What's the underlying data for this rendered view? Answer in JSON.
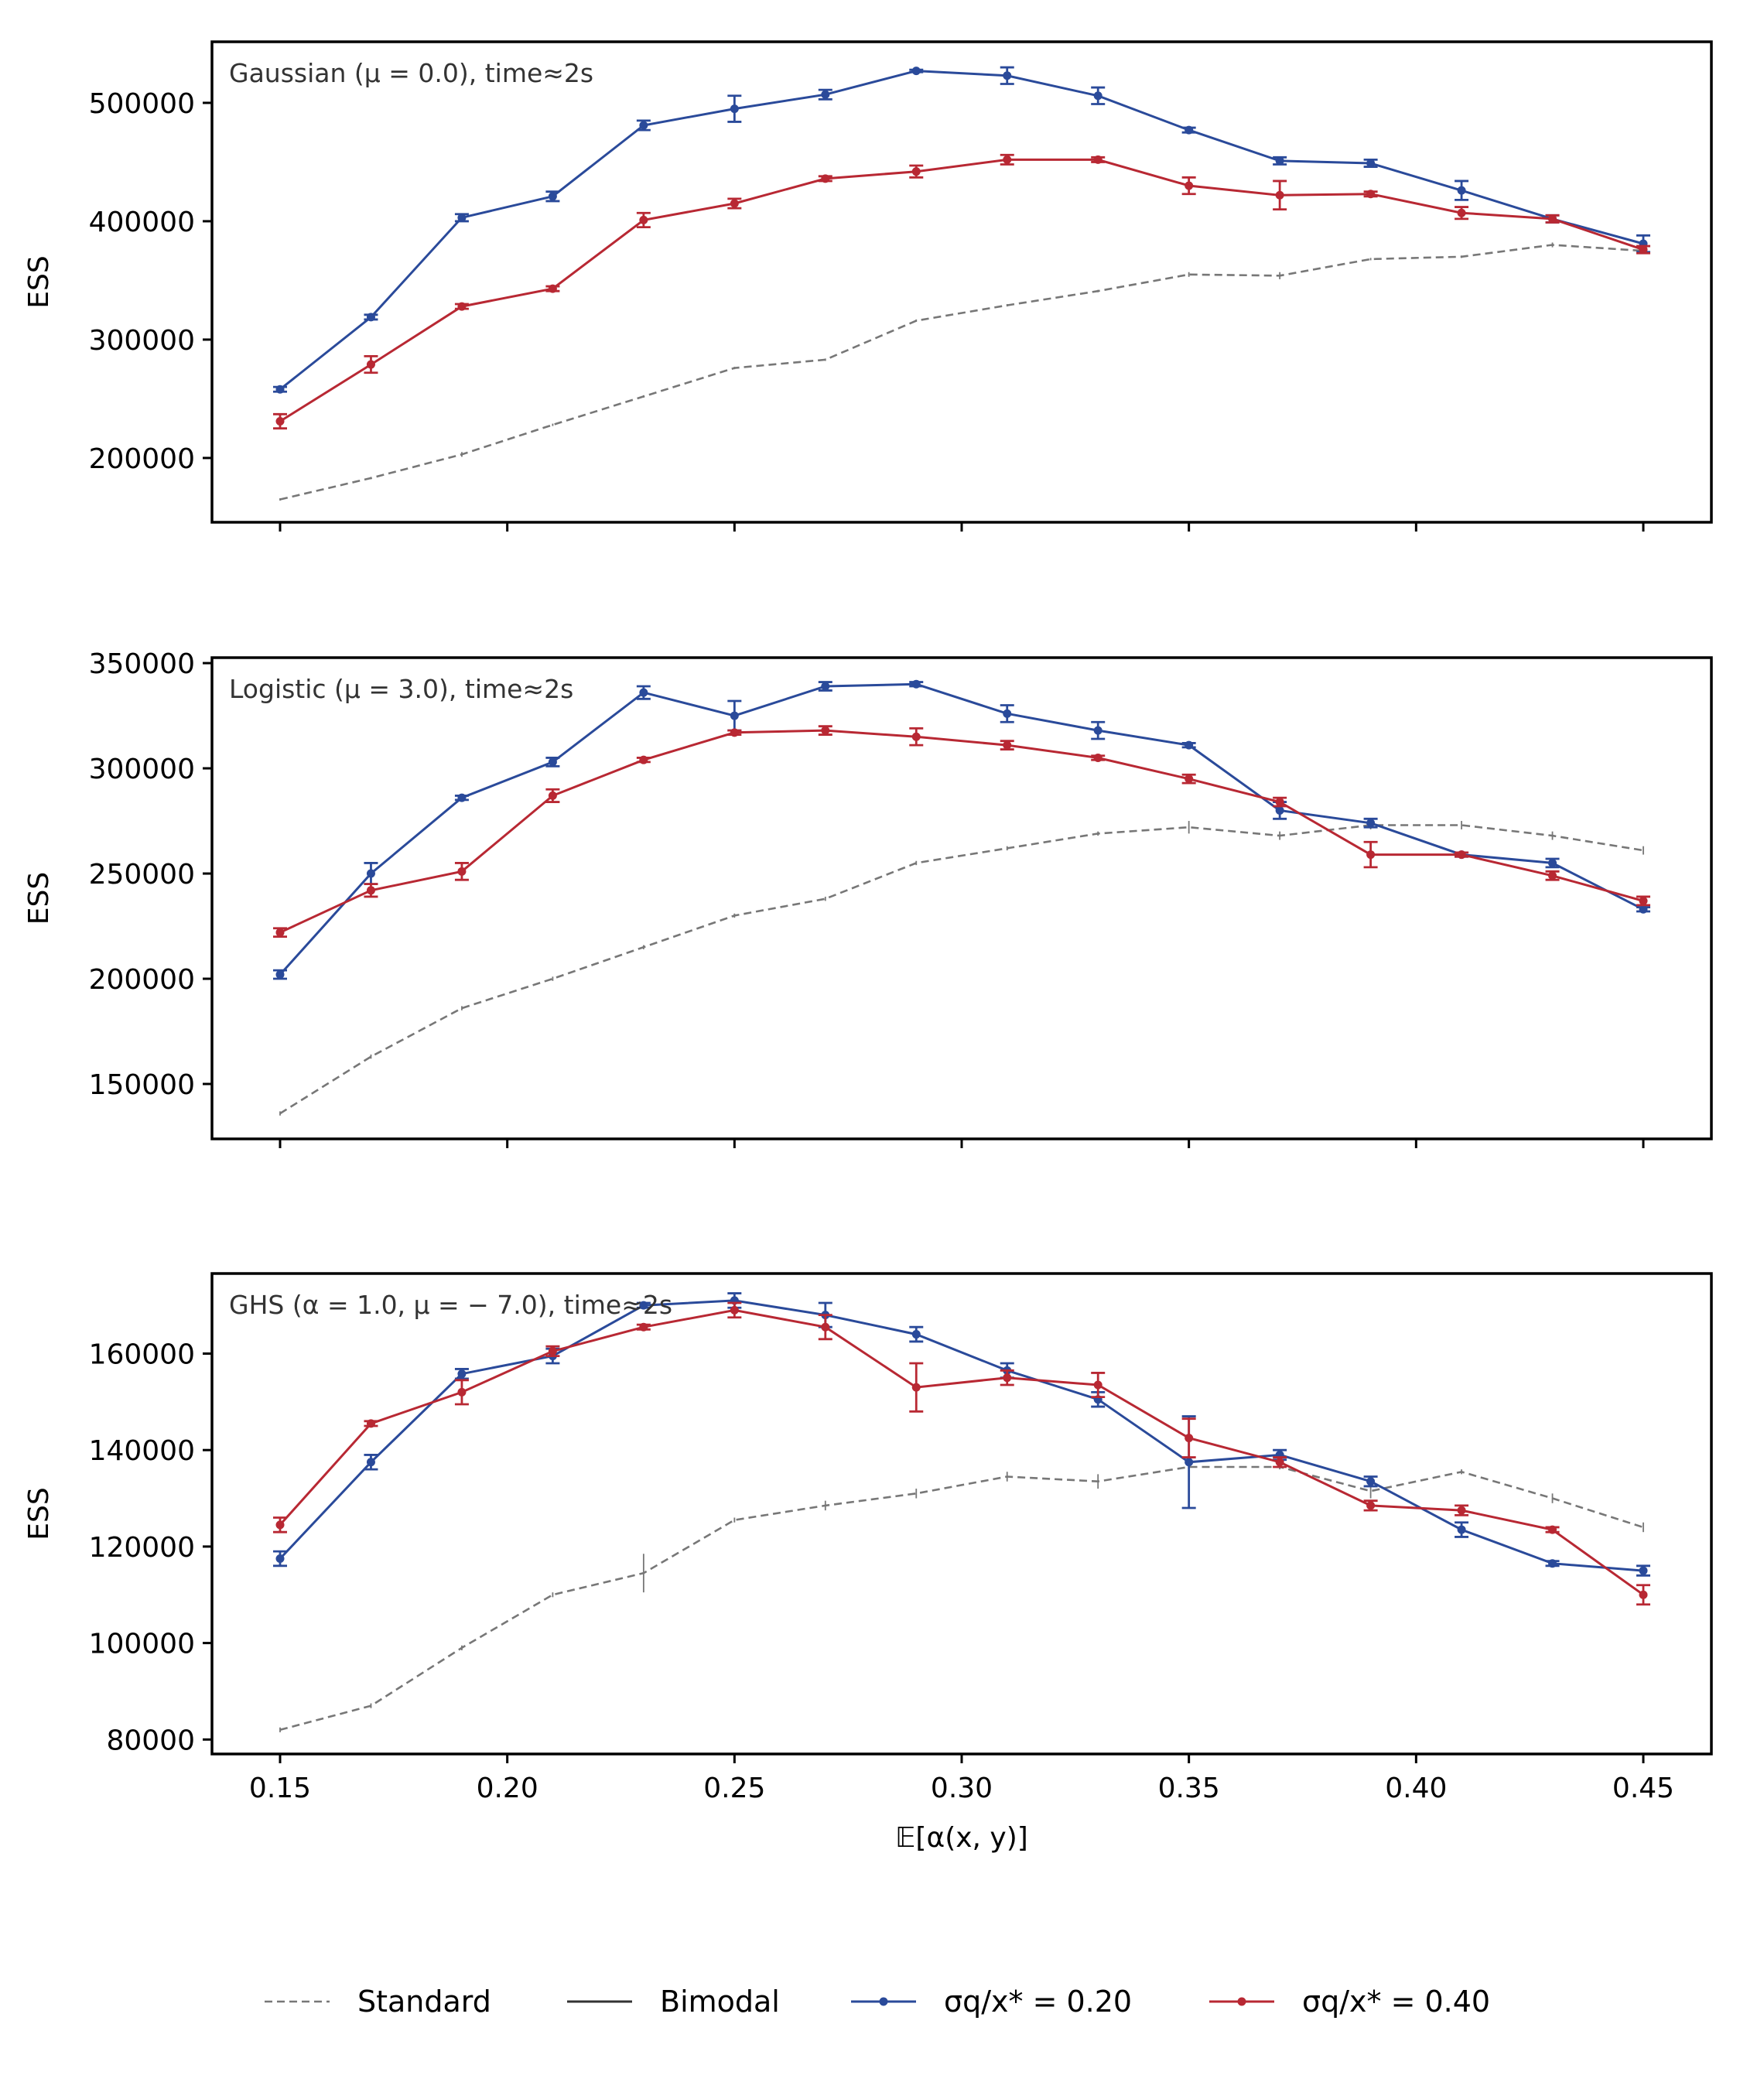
{
  "chart_data": [
    {
      "type": "line",
      "panel": "top",
      "annotation": "Gaussian (μ = 0.0),  time≈2s",
      "ylabel": "ESS",
      "xlabel": "",
      "ylim": [
        145700,
        551600
      ],
      "yticks": [
        200000,
        300000,
        400000,
        500000
      ],
      "ytick_labels": [
        "200000",
        "300000",
        "400000",
        "500000"
      ],
      "x": [
        0.15,
        0.17,
        0.19,
        0.21,
        0.23,
        0.25,
        0.27,
        0.29,
        0.31,
        0.33,
        0.35,
        0.37,
        0.39,
        0.41,
        0.43,
        0.45
      ],
      "series": [
        {
          "name": "Standard",
          "style": "dashed",
          "color": "#777777",
          "values": [
            165000,
            183000,
            203000,
            228000,
            252000,
            276000,
            283000,
            316000,
            329000,
            341000,
            355000,
            354000,
            368000,
            370000,
            380000,
            375000
          ],
          "errors": [
            1000,
            1000,
            2000,
            1000,
            1000,
            1000,
            1000,
            1000,
            1000,
            1000,
            2000,
            3000,
            1000,
            1000,
            2000,
            1000
          ]
        },
        {
          "name": "σq/x* = 0.20",
          "style": "solid",
          "color": "#2a4a9a",
          "values": [
            258000,
            319000,
            403000,
            421000,
            481000,
            495000,
            507000,
            527000,
            523000,
            506000,
            477000,
            451000,
            449000,
            426000,
            402000,
            381000
          ],
          "errors": [
            2000,
            2000,
            3000,
            4000,
            4000,
            11000,
            4000,
            1000,
            7000,
            7000,
            2000,
            3000,
            3000,
            8000,
            3000,
            7000
          ]
        },
        {
          "name": "σq/x* = 0.40",
          "style": "solid",
          "color": "#b82833",
          "values": [
            231000,
            279000,
            328000,
            343000,
            401000,
            415000,
            436000,
            442000,
            452000,
            452000,
            430000,
            422000,
            423000,
            407000,
            402000,
            376000
          ],
          "errors": [
            6000,
            7000,
            2000,
            2000,
            6000,
            4000,
            2000,
            5000,
            4000,
            2000,
            7000,
            12000,
            2000,
            5000,
            3000,
            3000
          ]
        }
      ]
    },
    {
      "type": "line",
      "panel": "middle",
      "annotation": "Logistic (μ = 3.0),  time≈2s",
      "ylabel": "ESS",
      "xlabel": "",
      "ylim": [
        123900,
        352600
      ],
      "yticks": [
        150000,
        200000,
        250000,
        300000,
        350000
      ],
      "ytick_labels": [
        "150000",
        "200000",
        "250000",
        "300000",
        "350000"
      ],
      "x": [
        0.15,
        0.17,
        0.19,
        0.21,
        0.23,
        0.25,
        0.27,
        0.29,
        0.31,
        0.33,
        0.35,
        0.37,
        0.39,
        0.41,
        0.43,
        0.45
      ],
      "series": [
        {
          "name": "Standard",
          "style": "dashed",
          "color": "#777777",
          "values": [
            136000,
            163000,
            186000,
            200000,
            215000,
            230000,
            238000,
            255000,
            262000,
            269000,
            272000,
            268000,
            273000,
            273000,
            268000,
            261000
          ],
          "errors": [
            1000,
            1000,
            1000,
            1000,
            1000,
            1000,
            1000,
            1000,
            1000,
            1000,
            3000,
            2000,
            2000,
            2000,
            2000,
            2000
          ]
        },
        {
          "name": "σq/x* = 0.20",
          "style": "solid",
          "color": "#2a4a9a",
          "values": [
            202000,
            250000,
            286000,
            303000,
            336000,
            325000,
            339000,
            340000,
            326000,
            318000,
            311000,
            280000,
            274000,
            259000,
            255000,
            233000
          ],
          "errors": [
            2000,
            5000,
            1000,
            2000,
            3000,
            7000,
            2000,
            1000,
            4000,
            4000,
            1000,
            4000,
            2000,
            1000,
            2000,
            1000
          ]
        },
        {
          "name": "σq/x* = 0.40",
          "style": "solid",
          "color": "#b82833",
          "values": [
            222000,
            242000,
            251000,
            287000,
            304000,
            317000,
            318000,
            315000,
            311000,
            305000,
            295000,
            284000,
            259000,
            259000,
            249000,
            237000
          ],
          "errors": [
            2000,
            3000,
            4000,
            3000,
            1000,
            1000,
            2000,
            4000,
            2000,
            1000,
            2000,
            2000,
            6000,
            1000,
            2000,
            2000
          ]
        }
      ]
    },
    {
      "type": "line",
      "panel": "bottom",
      "annotation": "GHS (α = 1.0, μ = − 7.0),  time≈2s",
      "ylabel": "ESS",
      "xlabel": "𝔼[α(x, y)]",
      "ylim": [
        77000,
        176600
      ],
      "yticks": [
        80000,
        100000,
        120000,
        140000,
        160000
      ],
      "ytick_labels": [
        "80000",
        "100000",
        "120000",
        "140000",
        "160000"
      ],
      "xticks": [
        0.15,
        0.2,
        0.25,
        0.3,
        0.35,
        0.4,
        0.45
      ],
      "xtick_labels": [
        "0.15",
        "0.20",
        "0.25",
        "0.30",
        "0.35",
        "0.40",
        "0.45"
      ],
      "x": [
        0.15,
        0.17,
        0.19,
        0.21,
        0.23,
        0.25,
        0.27,
        0.29,
        0.31,
        0.33,
        0.35,
        0.37,
        0.39,
        0.41,
        0.43,
        0.45
      ],
      "series": [
        {
          "name": "Standard",
          "style": "dashed",
          "color": "#777777",
          "values": [
            82000,
            87000,
            99000,
            110000,
            114500,
            125500,
            128500,
            131000,
            134500,
            133500,
            136500,
            136500,
            131500,
            135500,
            130000,
            124000
          ],
          "errors": [
            500,
            500,
            500,
            500,
            4000,
            500,
            1000,
            1000,
            1000,
            1500,
            500,
            500,
            1500,
            500,
            1000,
            1000
          ]
        },
        {
          "name": "σq/x* = 0.20",
          "style": "solid",
          "color": "#2a4a9a",
          "values": [
            117500,
            137500,
            155800,
            159500,
            170000,
            171000,
            168000,
            164000,
            156500,
            150500,
            137500,
            139000,
            133500,
            123500,
            116500,
            115000
          ],
          "errors": [
            1500,
            1500,
            1000,
            1500,
            500,
            1500,
            2500,
            1500,
            1500,
            1500,
            9500,
            1000,
            1000,
            1500,
            500,
            1000
          ]
        },
        {
          "name": "σq/x* = 0.40",
          "style": "solid",
          "color": "#b82833",
          "values": [
            124500,
            145500,
            152000,
            160500,
            165500,
            169000,
            165500,
            153000,
            155000,
            153500,
            142500,
            137500,
            128500,
            127500,
            123500,
            110000
          ],
          "errors": [
            1500,
            500,
            2500,
            1000,
            500,
            1500,
            2500,
            5000,
            1500,
            2500,
            4000,
            1000,
            1000,
            1000,
            500,
            2000
          ]
        }
      ]
    }
  ],
  "legend": {
    "position": "bottom-center",
    "entries": [
      {
        "label": "Standard",
        "style": "dashed",
        "color": "#777777",
        "marker": false
      },
      {
        "label": "Bimodal",
        "style": "solid",
        "color": "#333333",
        "marker": false
      },
      {
        "label": "σq/x* = 0.20",
        "style": "solid",
        "color": "#2a4a9a",
        "marker": true
      },
      {
        "label": "σq/x* = 0.40",
        "style": "solid",
        "color": "#b82833",
        "marker": true
      }
    ]
  }
}
